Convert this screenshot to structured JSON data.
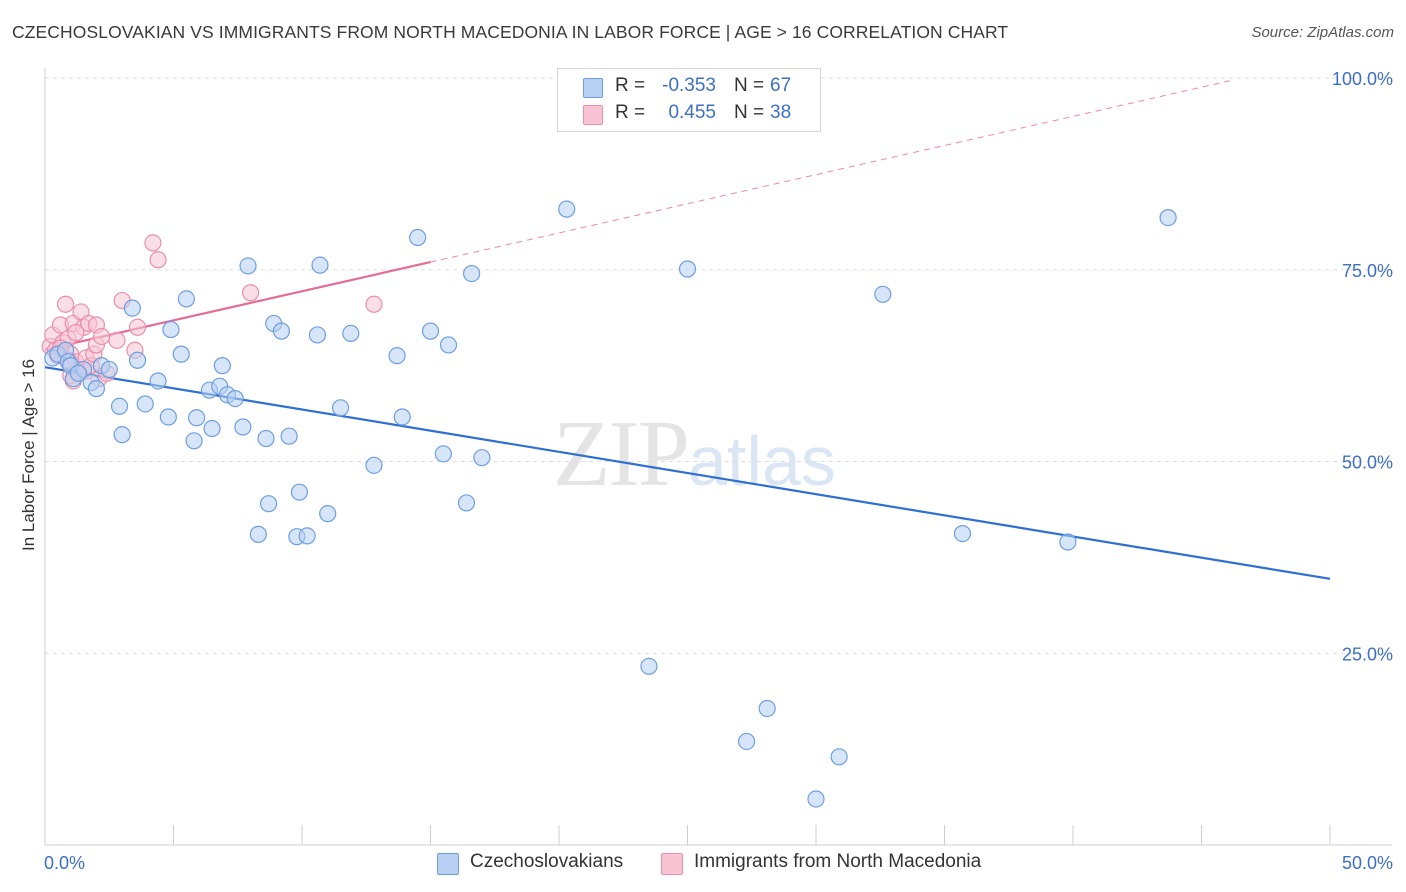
{
  "title": "CZECHOSLOVAKIAN VS IMMIGRANTS FROM NORTH MACEDONIA IN LABOR FORCE | AGE > 16 CORRELATION CHART",
  "source": "Source: ZipAtlas.com",
  "watermark": {
    "zip": "ZIP",
    "atlas": "atlas"
  },
  "legend": {
    "r_label": "R =",
    "n_label": "N =",
    "rows": [
      {
        "r": "-0.353",
        "n": "67",
        "color": "#b7d0f3",
        "border": "#6e9ee0"
      },
      {
        "r": "0.455",
        "n": "38",
        "color": "#f8c4d3",
        "border": "#ea8fab"
      }
    ]
  },
  "bottom_legend": [
    {
      "label": "Czechoslovakians",
      "color": "#b7d0f3",
      "border": "#6e9ee0"
    },
    {
      "label": "Immigrants from North Macedonia",
      "color": "#f8c4d3",
      "border": "#ea8fab"
    }
  ],
  "colors": {
    "blue_line": "#2f6fd1",
    "pink_line": "#e46c96",
    "grid": "#dedede",
    "tick_text": "#3d6fc4"
  },
  "chart_data": {
    "type": "scatter",
    "title": "CZECHOSLOVAKIAN VS IMMIGRANTS FROM NORTH MACEDONIA IN LABOR FORCE | AGE > 16 CORRELATION CHART",
    "xlabel": "",
    "ylabel": "In Labor Force | Age > 16",
    "xlim": [
      0,
      50
    ],
    "ylim": [
      0,
      100
    ],
    "x_tick_labels": [
      "0.0%",
      "50.0%"
    ],
    "y_ticks": [
      25,
      50,
      75,
      100
    ],
    "y_tick_labels": [
      "25.0%",
      "50.0%",
      "75.0%",
      "100.0%"
    ],
    "grid": true,
    "legend_position": "top-center",
    "series": [
      {
        "name": "Czechoslovakians",
        "color": "#6e9ee0",
        "fill": "#b7d0f3",
        "points": [
          [
            0.3,
            63.5
          ],
          [
            0.5,
            64.0
          ],
          [
            0.8,
            64.5
          ],
          [
            0.9,
            63.0
          ],
          [
            1.0,
            62.5
          ],
          [
            1.1,
            60.8
          ],
          [
            1.5,
            62.0
          ],
          [
            1.8,
            60.3
          ],
          [
            2.0,
            59.5
          ],
          [
            2.2,
            62.5
          ],
          [
            2.5,
            62.0
          ],
          [
            2.9,
            57.2
          ],
          [
            3.0,
            53.5
          ],
          [
            3.4,
            70.0
          ],
          [
            3.6,
            63.2
          ],
          [
            3.9,
            57.5
          ],
          [
            4.4,
            60.5
          ],
          [
            4.8,
            55.8
          ],
          [
            4.9,
            67.2
          ],
          [
            5.3,
            64.0
          ],
          [
            5.5,
            71.2
          ],
          [
            5.8,
            52.7
          ],
          [
            5.9,
            55.7
          ],
          [
            6.4,
            59.3
          ],
          [
            6.5,
            54.3
          ],
          [
            6.8,
            59.8
          ],
          [
            6.9,
            62.5
          ],
          [
            7.1,
            58.7
          ],
          [
            7.4,
            58.2
          ],
          [
            7.7,
            54.5
          ],
          [
            7.9,
            75.5
          ],
          [
            8.3,
            40.5
          ],
          [
            8.6,
            53.0
          ],
          [
            8.7,
            44.5
          ],
          [
            8.9,
            68.0
          ],
          [
            9.2,
            67.0
          ],
          [
            9.5,
            53.3
          ],
          [
            9.8,
            40.2
          ],
          [
            9.9,
            46.0
          ],
          [
            10.2,
            40.3
          ],
          [
            10.6,
            66.5
          ],
          [
            10.7,
            75.6
          ],
          [
            11.0,
            43.2
          ],
          [
            11.5,
            57.0
          ],
          [
            11.9,
            66.7
          ],
          [
            12.8,
            49.5
          ],
          [
            13.7,
            63.8
          ],
          [
            13.9,
            55.8
          ],
          [
            14.5,
            79.2
          ],
          [
            15.0,
            67.0
          ],
          [
            15.5,
            51.0
          ],
          [
            15.7,
            65.2
          ],
          [
            16.4,
            44.6
          ],
          [
            16.6,
            74.5
          ],
          [
            17.0,
            50.5
          ],
          [
            20.3,
            82.9
          ],
          [
            23.5,
            23.3
          ],
          [
            25.0,
            75.1
          ],
          [
            27.3,
            13.5
          ],
          [
            28.1,
            17.8
          ],
          [
            30.0,
            6.0
          ],
          [
            30.9,
            11.5
          ],
          [
            32.6,
            71.8
          ],
          [
            35.7,
            40.6
          ],
          [
            39.8,
            39.5
          ],
          [
            43.7,
            81.8
          ],
          [
            1.3,
            61.5
          ]
        ],
        "trend": {
          "x": [
            0,
            50
          ],
          "y": [
            62.3,
            34.7
          ],
          "r": -0.353,
          "n": 67
        }
      },
      {
        "name": "Immigrants from North Macedonia",
        "color": "#ea8fab",
        "fill": "#f8c4d3",
        "points": [
          [
            0.2,
            65.0
          ],
          [
            0.3,
            66.5
          ],
          [
            0.4,
            64.5
          ],
          [
            0.5,
            63.8
          ],
          [
            0.6,
            67.8
          ],
          [
            0.7,
            65.5
          ],
          [
            0.8,
            70.5
          ],
          [
            0.9,
            66.0
          ],
          [
            1.0,
            64.0
          ],
          [
            1.0,
            61.2
          ],
          [
            1.1,
            68.0
          ],
          [
            1.1,
            60.5
          ],
          [
            1.2,
            63.0
          ],
          [
            1.3,
            62.0
          ],
          [
            1.3,
            61.5
          ],
          [
            1.4,
            69.5
          ],
          [
            1.5,
            67.5
          ],
          [
            1.6,
            63.5
          ],
          [
            1.6,
            61.8
          ],
          [
            1.7,
            68.0
          ],
          [
            1.8,
            62.5
          ],
          [
            1.9,
            64.0
          ],
          [
            2.0,
            65.2
          ],
          [
            2.0,
            67.8
          ],
          [
            2.1,
            60.8
          ],
          [
            2.2,
            66.3
          ],
          [
            2.4,
            61.5
          ],
          [
            2.8,
            65.8
          ],
          [
            3.0,
            71.0
          ],
          [
            3.5,
            64.5
          ],
          [
            3.6,
            67.5
          ],
          [
            4.2,
            78.5
          ],
          [
            4.4,
            76.3
          ],
          [
            8.0,
            72.0
          ],
          [
            12.8,
            70.5
          ],
          [
            0.6,
            64.8
          ],
          [
            0.9,
            63.2
          ],
          [
            1.2,
            66.8
          ]
        ],
        "trend": {
          "x": [
            0,
            15
          ],
          "y": [
            64.6,
            76.0
          ],
          "dashed_extension_to_x": 46.1,
          "r": 0.455,
          "n": 38
        }
      }
    ]
  }
}
